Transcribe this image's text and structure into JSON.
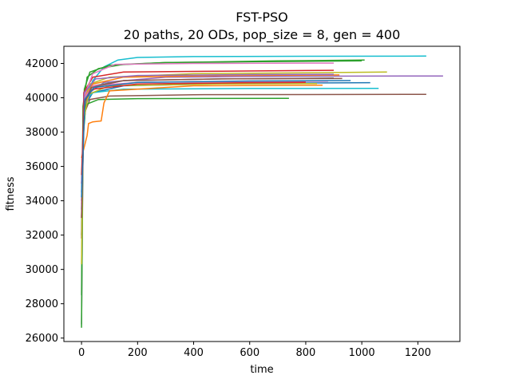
{
  "chart_data": {
    "type": "line",
    "title": "FST-PSO",
    "subtitle": "20 paths, 20 ODs, pop_size = 8, gen = 400",
    "xlabel": "time",
    "ylabel": "fitness",
    "xlim": [
      -63,
      1350
    ],
    "ylim": [
      25800,
      43000
    ],
    "x_ticks": [
      0,
      200,
      400,
      600,
      800,
      1000,
      1200
    ],
    "y_ticks": [
      26000,
      28000,
      30000,
      32000,
      34000,
      36000,
      38000,
      40000,
      42000
    ],
    "grid": false,
    "legend": "none",
    "series": [
      {
        "color": "#17becf",
        "points": [
          [
            0,
            33500
          ],
          [
            5,
            38600
          ],
          [
            15,
            40000
          ],
          [
            40,
            41000
          ],
          [
            80,
            41800
          ],
          [
            130,
            42200
          ],
          [
            200,
            42350
          ],
          [
            400,
            42400
          ],
          [
            800,
            42420
          ],
          [
            1230,
            42430
          ]
        ]
      },
      {
        "color": "#2ca02c",
        "points": [
          [
            0,
            28500
          ],
          [
            5,
            39500
          ],
          [
            20,
            41200
          ],
          [
            60,
            41700
          ],
          [
            150,
            41950
          ],
          [
            300,
            42050
          ],
          [
            600,
            42100
          ],
          [
            1000,
            42150
          ]
        ]
      },
      {
        "color": "#2ca02c",
        "points": [
          [
            0,
            32000
          ],
          [
            10,
            40500
          ],
          [
            30,
            41500
          ],
          [
            100,
            41900
          ],
          [
            300,
            42050
          ],
          [
            700,
            42150
          ],
          [
            1010,
            42200
          ]
        ]
      },
      {
        "color": "#bcbd22",
        "points": [
          [
            0,
            33000
          ],
          [
            8,
            39800
          ],
          [
            30,
            40800
          ],
          [
            100,
            41200
          ],
          [
            400,
            41400
          ],
          [
            800,
            41450
          ],
          [
            1090,
            41500
          ]
        ]
      },
      {
        "color": "#9467bd",
        "points": [
          [
            0,
            26800
          ],
          [
            6,
            38000
          ],
          [
            20,
            40200
          ],
          [
            80,
            40900
          ],
          [
            300,
            41200
          ],
          [
            700,
            41250
          ],
          [
            1290,
            41270
          ]
        ]
      },
      {
        "color": "#d62728",
        "points": [
          [
            0,
            33000
          ],
          [
            8,
            40300
          ],
          [
            40,
            41200
          ],
          [
            150,
            41500
          ],
          [
            500,
            41550
          ],
          [
            900,
            41600
          ]
        ]
      },
      {
        "color": "#1f77b4",
        "points": [
          [
            0,
            34500
          ],
          [
            10,
            39500
          ],
          [
            40,
            40300
          ],
          [
            150,
            40700
          ],
          [
            600,
            40850
          ],
          [
            1030,
            40880
          ]
        ]
      },
      {
        "color": "#e377c2",
        "points": [
          [
            0,
            33500
          ],
          [
            10,
            40100
          ],
          [
            40,
            41400
          ],
          [
            120,
            41950
          ],
          [
            400,
            42000
          ],
          [
            900,
            42020
          ]
        ]
      },
      {
        "color": "#8c564b",
        "points": [
          [
            0,
            31800
          ],
          [
            8,
            39000
          ],
          [
            30,
            39900
          ],
          [
            100,
            40100
          ],
          [
            400,
            40180
          ],
          [
            1230,
            40200
          ]
        ]
      },
      {
        "color": "#2ca02c",
        "points": [
          [
            0,
            26600
          ],
          [
            5,
            37500
          ],
          [
            15,
            39600
          ],
          [
            60,
            39900
          ],
          [
            200,
            39950
          ],
          [
            740,
            39970
          ]
        ]
      },
      {
        "color": "#17becf",
        "points": [
          [
            0,
            34000
          ],
          [
            10,
            39800
          ],
          [
            40,
            40300
          ],
          [
            150,
            40500
          ],
          [
            600,
            40540
          ],
          [
            1060,
            40550
          ]
        ]
      },
      {
        "color": "#ff7f0e",
        "points": [
          [
            0,
            36500
          ],
          [
            20,
            37800
          ],
          [
            25,
            38500
          ],
          [
            40,
            38600
          ],
          [
            70,
            38650
          ],
          [
            80,
            39700
          ],
          [
            100,
            40400
          ],
          [
            400,
            40700
          ],
          [
            860,
            40730
          ]
        ]
      },
      {
        "color": "#7f7f7f",
        "points": [
          [
            0,
            34000
          ],
          [
            10,
            39500
          ],
          [
            40,
            40700
          ],
          [
            150,
            41000
          ],
          [
            500,
            41100
          ],
          [
            900,
            41150
          ]
        ]
      },
      {
        "color": "#bcbd22",
        "points": [
          [
            0,
            30300
          ],
          [
            6,
            38500
          ],
          [
            25,
            40200
          ],
          [
            100,
            40700
          ],
          [
            500,
            40800
          ],
          [
            840,
            40830
          ]
        ]
      },
      {
        "color": "#ff7f0e",
        "points": [
          [
            0,
            35000
          ],
          [
            10,
            40000
          ],
          [
            40,
            40800
          ],
          [
            150,
            41200
          ],
          [
            500,
            41300
          ],
          [
            920,
            41330
          ]
        ]
      },
      {
        "color": "#e377c2",
        "points": [
          [
            0,
            33800
          ],
          [
            10,
            40000
          ],
          [
            40,
            40700
          ],
          [
            200,
            40900
          ],
          [
            600,
            40950
          ],
          [
            880,
            40970
          ]
        ]
      },
      {
        "color": "#8c564b",
        "points": [
          [
            0,
            33000
          ],
          [
            10,
            39700
          ],
          [
            35,
            40600
          ],
          [
            150,
            41000
          ],
          [
            500,
            41100
          ],
          [
            930,
            41120
          ]
        ]
      },
      {
        "color": "#9467bd",
        "points": [
          [
            0,
            35000
          ],
          [
            10,
            40300
          ],
          [
            50,
            41100
          ],
          [
            200,
            41300
          ],
          [
            600,
            41350
          ],
          [
            900,
            41370
          ]
        ]
      },
      {
        "color": "#d62728",
        "points": [
          [
            0,
            35500
          ],
          [
            10,
            39800
          ],
          [
            40,
            40500
          ],
          [
            200,
            40800
          ],
          [
            600,
            40880
          ],
          [
            800,
            40900
          ]
        ]
      },
      {
        "color": "#1f77b4",
        "points": [
          [
            0,
            34200
          ],
          [
            12,
            39900
          ],
          [
            45,
            40600
          ],
          [
            200,
            40900
          ],
          [
            600,
            40980
          ],
          [
            960,
            41000
          ]
        ]
      }
    ]
  }
}
